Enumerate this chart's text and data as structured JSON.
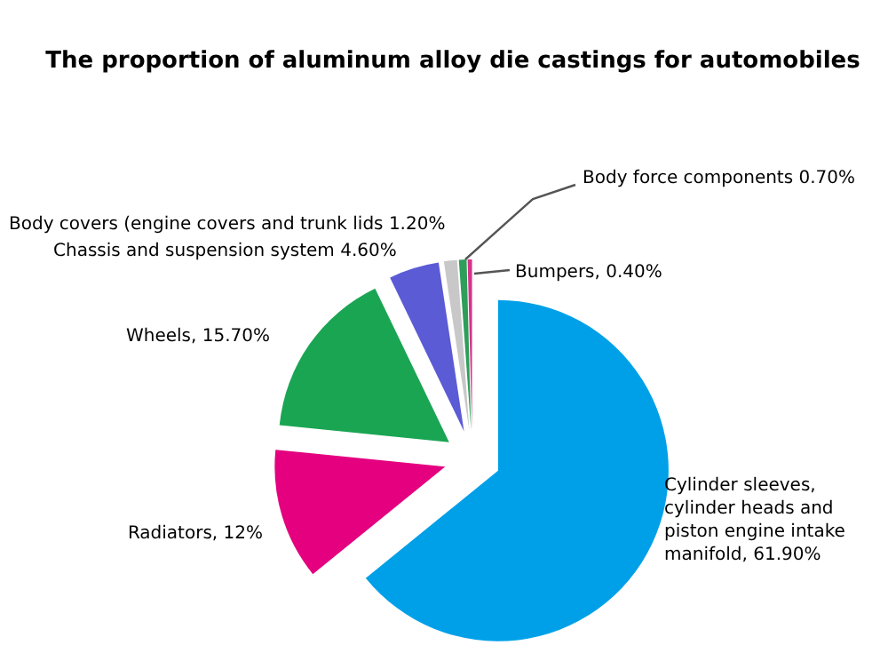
{
  "chart_data": {
    "type": "pie",
    "title": "The proportion of aluminum alloy die castings for automobiles",
    "categories": [
      "Cylinder sleeves, cylinder heads and piston engine intake manifold, 61.90%",
      "Radiators, 12%",
      "Wheels, 15.70%",
      "Chassis and suspension system 4.60%",
      "Body covers (engine covers and trunk lids 1.20%",
      "Body force components 0.70%",
      "Bumpers, 0.40%"
    ],
    "values": [
      61.9,
      12,
      15.7,
      4.6,
      1.2,
      0.7,
      0.4
    ],
    "colors": [
      "#00a0e9",
      "#e4007f",
      "#1aa553",
      "#5b5bd6",
      "#c8c8c8",
      "#2e9e5a",
      "#d6338a"
    ]
  }
}
